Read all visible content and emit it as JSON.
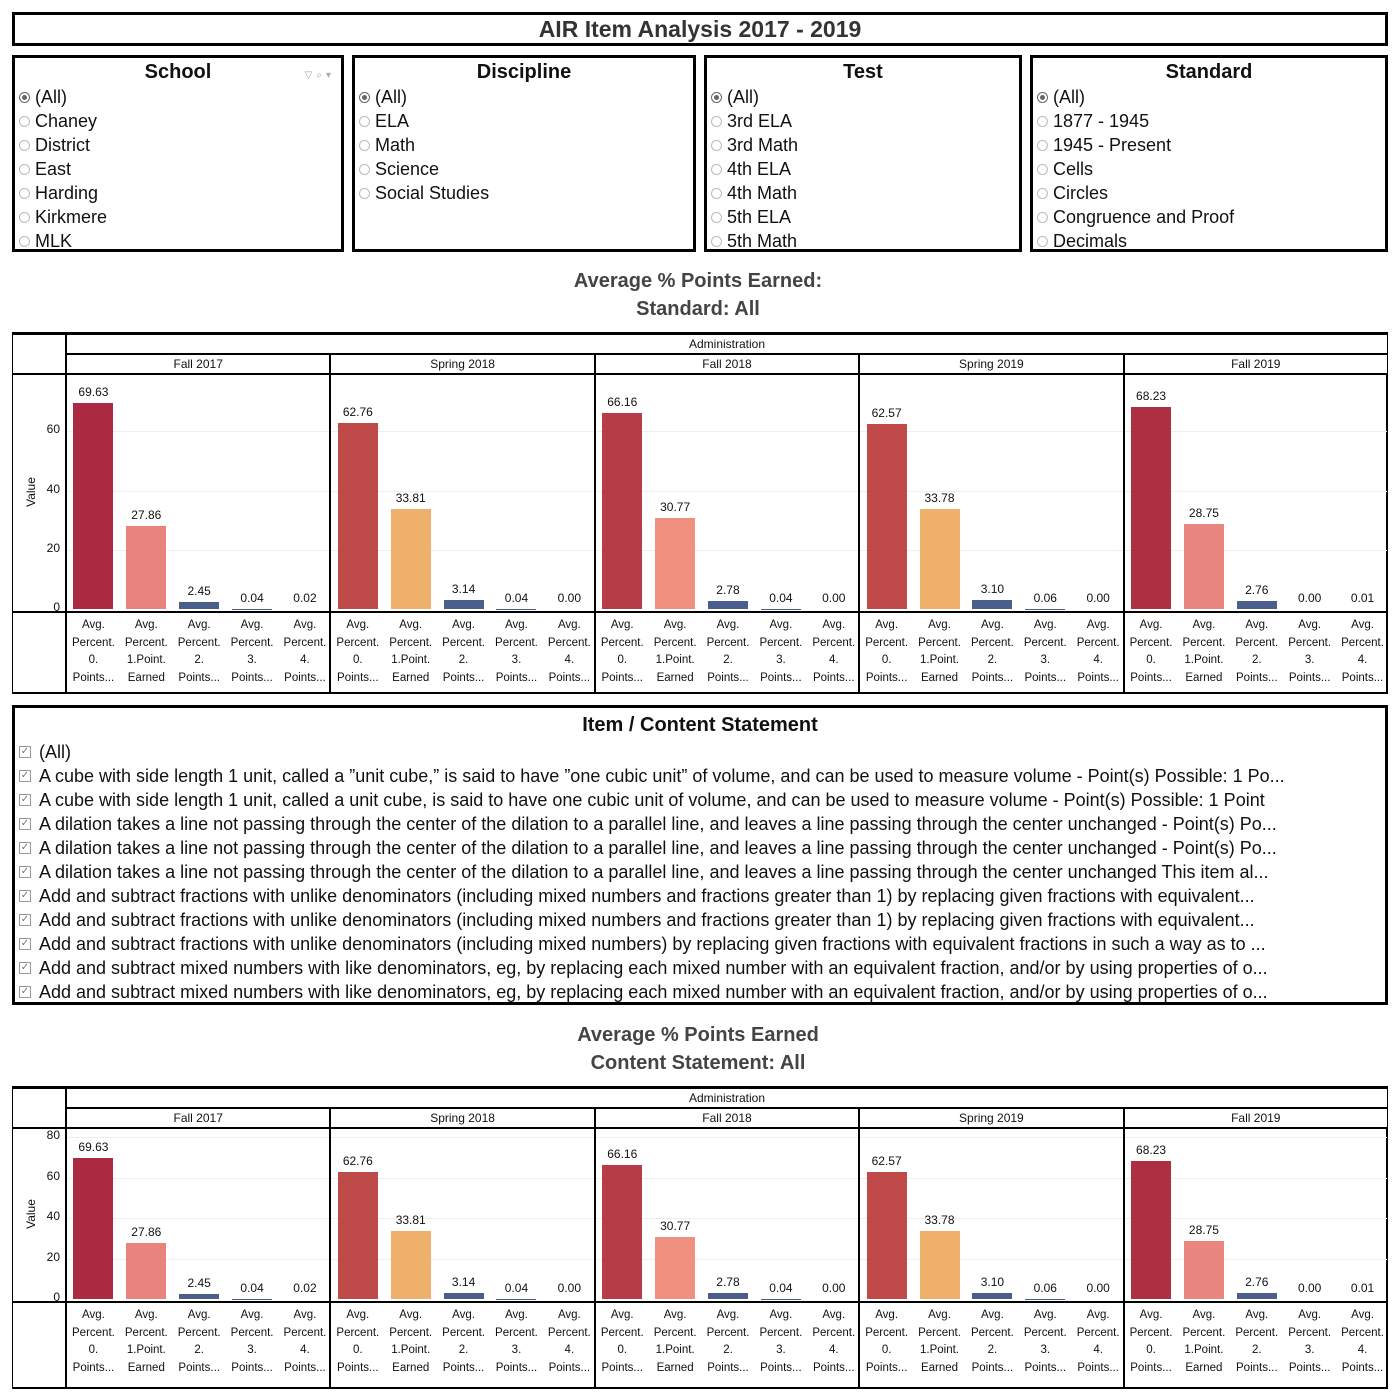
{
  "title": "AIR Item Analysis 2017 - 2019",
  "filters": [
    {
      "label": "School",
      "items": [
        "(All)",
        "Chaney",
        "District",
        "East",
        "Harding",
        "Kirkmere",
        "MLK"
      ],
      "selected": "(All)"
    },
    {
      "label": "Discipline",
      "items": [
        "(All)",
        "ELA",
        "Math",
        "Science",
        "Social Studies"
      ],
      "selected": "(All)"
    },
    {
      "label": "Test",
      "items": [
        "(All)",
        "3rd ELA",
        "3rd Math",
        "4th ELA",
        "4th Math",
        "5th ELA",
        "5th Math"
      ],
      "selected": "(All)"
    },
    {
      "label": "Standard",
      "items": [
        "(All)",
        "1877 - 1945",
        "1945 - Present",
        "Cells",
        "Circles",
        "Congruence and Proof",
        "Decimals"
      ],
      "selected": "(All)"
    }
  ],
  "filter_icons": [
    "filter-icon",
    "search-icon",
    "dropdown-arrow-icon"
  ],
  "chart1_title": [
    "Average % Points Earned:",
    "Standard: All"
  ],
  "chart2_title": [
    "Average % Points Earned",
    "Content Statement: All"
  ],
  "item_filter": {
    "label": "Item / Content Statement",
    "items": [
      "(All)",
      "A cube with side length 1 unit, called a ”unit cube,” is said to have ”one cubic unit” of volume, and can be used to measure volume - Point(s) Possible: 1 Po...",
      "A cube with side length 1 unit, called a unit cube, is said to have one cubic unit of volume, and can be used to measure volume - Point(s) Possible: 1 Point",
      "A dilation takes a line not passing through the center of the dilation to a parallel line, and leaves a line passing through the center unchanged - Point(s) Po...",
      "A dilation takes a line not passing through the center of the dilation to a parallel line, and leaves a line passing through the center unchanged - Point(s) Po...",
      "A dilation takes a line not passing through the center of the dilation to a parallel line, and leaves a line passing through the center unchanged This item al...",
      "Add and subtract fractions with unlike denominators (including mixed numbers and fractions greater than 1) by replacing given fractions with equivalent...",
      "Add and subtract fractions with unlike denominators (including mixed numbers and fractions greater than 1) by replacing given fractions with equivalent...",
      "Add and subtract fractions with unlike denominators (including mixed numbers) by replacing given fractions with equivalent fractions in such a way as to ...",
      "Add and subtract mixed numbers with like denominators, eg, by replacing each mixed number with an equivalent fraction, and/or by using properties of o...",
      "Add and subtract mixed numbers with like denominators, eg, by replacing each mixed number with an equivalent fraction, and/or by using properties of o..."
    ]
  },
  "chart_data": [
    {
      "type": "bar",
      "column_header": "Administration",
      "ylabel": "Value",
      "ylim": [
        0,
        79
      ],
      "yticks": [
        0,
        20,
        40,
        60
      ],
      "grid": true,
      "categories": [
        "Avg.\nPercent.\n0.\nPoints...",
        "Avg.\nPercent.\n1.Point.\nEarned",
        "Avg.\nPercent.\n2.\nPoints...",
        "Avg.\nPercent.\n3.\nPoints...",
        "Avg.\nPercent.\n4.\nPoints..."
      ],
      "panels": [
        {
          "name": "Fall 2017",
          "values": [
            69.63,
            27.86,
            2.45,
            0.04,
            0.02
          ],
          "labels": [
            "69.63",
            "27.86",
            "2.45",
            "0.04",
            "0.02"
          ],
          "colors": [
            "#ab2a42",
            "#e8837e",
            "#4a5f8c",
            "#4a5f8c",
            "#4a5f8c"
          ]
        },
        {
          "name": "Spring 2018",
          "values": [
            62.76,
            33.81,
            3.14,
            0.04,
            0.0
          ],
          "labels": [
            "62.76",
            "33.81",
            "3.14",
            "0.04",
            "0.00"
          ],
          "colors": [
            "#bf4a4a",
            "#efb06b",
            "#4a5f8c",
            "#4a5f8c",
            "#4a5f8c"
          ]
        },
        {
          "name": "Fall 2018",
          "values": [
            66.16,
            30.77,
            2.78,
            0.04,
            0.0
          ],
          "labels": [
            "66.16",
            "30.77",
            "2.78",
            "0.04",
            "0.00"
          ],
          "colors": [
            "#b63c47",
            "#f0907e",
            "#4a5f8c",
            "#4a5f8c",
            "#4a5f8c"
          ]
        },
        {
          "name": "Spring 2019",
          "values": [
            62.57,
            33.78,
            3.1,
            0.06,
            0.0
          ],
          "labels": [
            "62.57",
            "33.78",
            "3.10",
            "0.06",
            "0.00"
          ],
          "colors": [
            "#c0494a",
            "#eeb06b",
            "#4a5f8c",
            "#4a5f8c",
            "#4a5f8c"
          ]
        },
        {
          "name": "Fall 2019",
          "values": [
            68.23,
            28.75,
            2.76,
            0.0,
            0.01
          ],
          "labels": [
            "68.23",
            "28.75",
            "2.76",
            "0.00",
            "0.01"
          ],
          "colors": [
            "#ad2f42",
            "#e8867f",
            "#4a5f8c",
            "#4a5f8c",
            "#4a5f8c"
          ]
        }
      ]
    },
    {
      "type": "bar",
      "column_header": "Administration",
      "ylabel": "Value",
      "ylim": [
        0,
        84
      ],
      "yticks": [
        0,
        20,
        40,
        60,
        80
      ],
      "grid": true,
      "categories": [
        "Avg.\nPercent.\n0.\nPoints...",
        "Avg.\nPercent.\n1.Point.\nEarned",
        "Avg.\nPercent.\n2.\nPoints...",
        "Avg.\nPercent.\n3.\nPoints...",
        "Avg.\nPercent.\n4.\nPoints..."
      ],
      "panels": [
        {
          "name": "Fall 2017",
          "values": [
            69.63,
            27.86,
            2.45,
            0.04,
            0.02
          ],
          "labels": [
            "69.63",
            "27.86",
            "2.45",
            "0.04",
            "0.02"
          ],
          "colors": [
            "#ab2a42",
            "#e8837e",
            "#4a5f8c",
            "#4a5f8c",
            "#4a5f8c"
          ]
        },
        {
          "name": "Spring 2018",
          "values": [
            62.76,
            33.81,
            3.14,
            0.04,
            0.0
          ],
          "labels": [
            "62.76",
            "33.81",
            "3.14",
            "0.04",
            "0.00"
          ],
          "colors": [
            "#bf4a4a",
            "#efb06b",
            "#4a5f8c",
            "#4a5f8c",
            "#4a5f8c"
          ]
        },
        {
          "name": "Fall 2018",
          "values": [
            66.16,
            30.77,
            2.78,
            0.04,
            0.0
          ],
          "labels": [
            "66.16",
            "30.77",
            "2.78",
            "0.04",
            "0.00"
          ],
          "colors": [
            "#b63c47",
            "#f0907e",
            "#4a5f8c",
            "#4a5f8c",
            "#4a5f8c"
          ]
        },
        {
          "name": "Spring 2019",
          "values": [
            62.57,
            33.78,
            3.1,
            0.06,
            0.0
          ],
          "labels": [
            "62.57",
            "33.78",
            "3.10",
            "0.06",
            "0.00"
          ],
          "colors": [
            "#c0494a",
            "#eeb06b",
            "#4a5f8c",
            "#4a5f8c",
            "#4a5f8c"
          ]
        },
        {
          "name": "Fall 2019",
          "values": [
            68.23,
            28.75,
            2.76,
            0.0,
            0.01
          ],
          "labels": [
            "68.23",
            "28.75",
            "2.76",
            "0.00",
            "0.01"
          ],
          "colors": [
            "#ad2f42",
            "#e8867f",
            "#4a5f8c",
            "#4a5f8c",
            "#4a5f8c"
          ]
        }
      ]
    }
  ]
}
